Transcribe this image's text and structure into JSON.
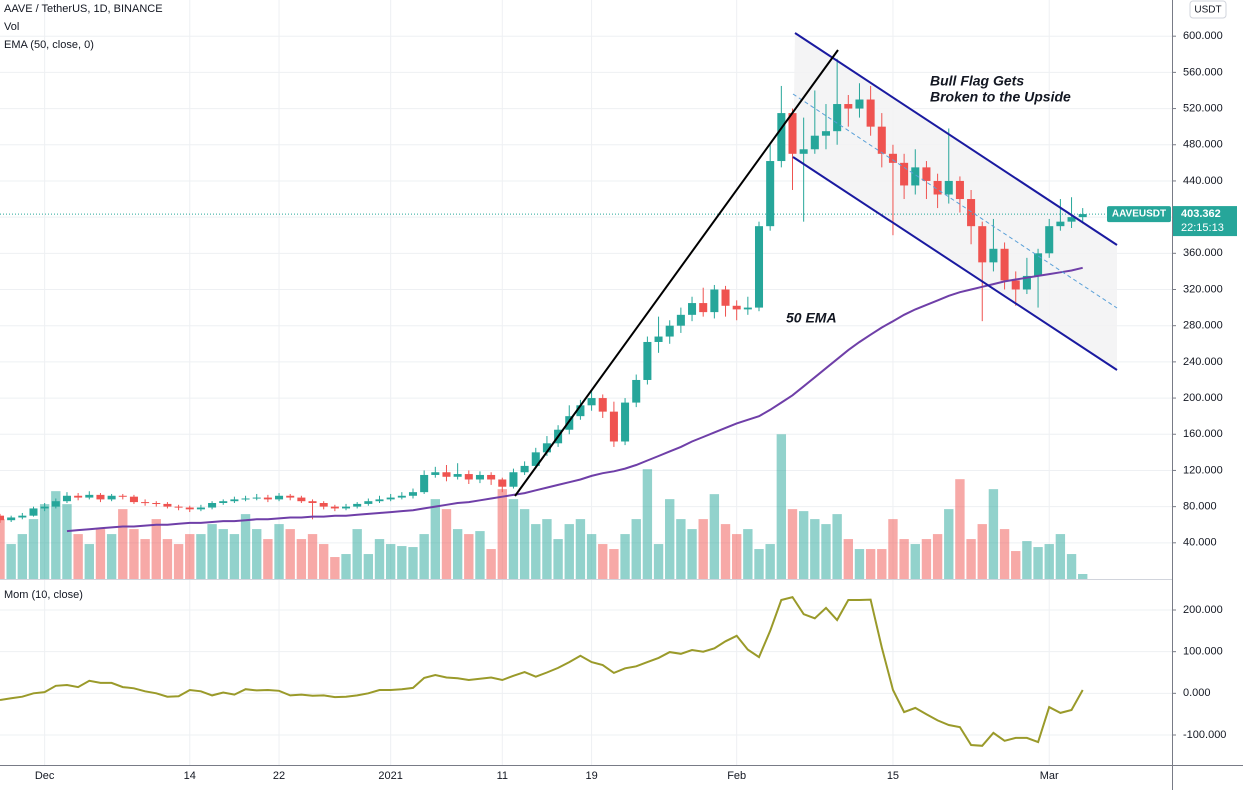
{
  "chart_data": {
    "type": "candlestick",
    "title": "AAVE / TetherUS, 1D, BINANCE",
    "volume_label": "Vol",
    "ema_label": "EMA (50, close, 0)",
    "momentum_label": "Mom (10, close)",
    "currency": "USDT",
    "symbol_label": "AAVEUSDT",
    "countdown": "22:15:13",
    "annotations": [
      "Bull Flag Gets",
      "Broken to the Upside",
      "50 EMA"
    ],
    "x": [
      "2020-11-27",
      "2020-11-28",
      "2020-11-29",
      "2020-11-30",
      "2020-12-01",
      "2020-12-02",
      "2020-12-03",
      "2020-12-04",
      "2020-12-05",
      "2020-12-06",
      "2020-12-07",
      "2020-12-08",
      "2020-12-09",
      "2020-12-10",
      "2020-12-11",
      "2020-12-12",
      "2020-12-13",
      "2020-12-14",
      "2020-12-15",
      "2020-12-16",
      "2020-12-17",
      "2020-12-18",
      "2020-12-19",
      "2020-12-20",
      "2020-12-21",
      "2020-12-22",
      "2020-12-23",
      "2020-12-24",
      "2020-12-25",
      "2020-12-26",
      "2020-12-27",
      "2020-12-28",
      "2020-12-29",
      "2020-12-30",
      "2020-12-31",
      "2021-01-01",
      "2021-01-02",
      "2021-01-03",
      "2021-01-04",
      "2021-01-05",
      "2021-01-06",
      "2021-01-07",
      "2021-01-08",
      "2021-01-09",
      "2021-01-10",
      "2021-01-11",
      "2021-01-12",
      "2021-01-13",
      "2021-01-14",
      "2021-01-15",
      "2021-01-16",
      "2021-01-17",
      "2021-01-18",
      "2021-01-19",
      "2021-01-20",
      "2021-01-21",
      "2021-01-22",
      "2021-01-23",
      "2021-01-24",
      "2021-01-25",
      "2021-01-26",
      "2021-01-27",
      "2021-01-28",
      "2021-01-29",
      "2021-01-30",
      "2021-01-31",
      "2021-02-01",
      "2021-02-02",
      "2021-02-03",
      "2021-02-04",
      "2021-02-05",
      "2021-02-06",
      "2021-02-07",
      "2021-02-08",
      "2021-02-09",
      "2021-02-10",
      "2021-02-11",
      "2021-02-12",
      "2021-02-13",
      "2021-02-14",
      "2021-02-15",
      "2021-02-16",
      "2021-02-17",
      "2021-02-18",
      "2021-02-19",
      "2021-02-20",
      "2021-02-21",
      "2021-02-22",
      "2021-02-23",
      "2021-02-24",
      "2021-02-25",
      "2021-02-26",
      "2021-02-27",
      "2021-02-28",
      "2021-03-01",
      "2021-03-02",
      "2021-03-03",
      "2021-03-04"
    ],
    "xlim": [
      "2020-11-27",
      "2021-03-12"
    ],
    "xticks": [
      {
        "value": "2020-12-01",
        "label": "Dec"
      },
      {
        "value": "2020-12-14",
        "label": "14"
      },
      {
        "value": "2020-12-22",
        "label": "22"
      },
      {
        "value": "2021-01-01",
        "label": "2021"
      },
      {
        "value": "2021-01-11",
        "label": "11"
      },
      {
        "value": "2021-01-19",
        "label": "19"
      },
      {
        "value": "2021-02-01",
        "label": "Feb"
      },
      {
        "value": "2021-02-15",
        "label": "15"
      },
      {
        "value": "2021-03-01",
        "label": "Mar"
      }
    ],
    "open": [
      70,
      65,
      68,
      70,
      78,
      80,
      86,
      92,
      90,
      93,
      88,
      92,
      91,
      85,
      84,
      83,
      80,
      79,
      77,
      79,
      84,
      86,
      88,
      89,
      90,
      88,
      92,
      90,
      86,
      84,
      80,
      78,
      80,
      83,
      86,
      88,
      90,
      92,
      96,
      115,
      118,
      113,
      116,
      110,
      115,
      110,
      102,
      118,
      125,
      140,
      150,
      165,
      180,
      192,
      200,
      185,
      152,
      195,
      220,
      262,
      268,
      280,
      292,
      305,
      295,
      320,
      302,
      298,
      300,
      390,
      462,
      515,
      470,
      475,
      490,
      495,
      525,
      520,
      530,
      500,
      470,
      460,
      435,
      455,
      440,
      425,
      440,
      420,
      390,
      350,
      365,
      330,
      320,
      335,
      360,
      390,
      395,
      400
    ],
    "high": [
      72,
      70,
      73,
      80,
      84,
      89,
      96,
      95,
      97,
      95,
      94,
      94,
      93,
      88,
      86,
      85,
      82,
      81,
      82,
      86,
      88,
      91,
      92,
      94,
      93,
      95,
      94,
      92,
      88,
      86,
      82,
      83,
      85,
      89,
      92,
      94,
      96,
      100,
      120,
      124,
      126,
      128,
      120,
      119,
      118,
      112,
      122,
      130,
      145,
      158,
      170,
      192,
      198,
      208,
      204,
      196,
      200,
      226,
      268,
      290,
      286,
      300,
      312,
      322,
      325,
      324,
      308,
      312,
      395,
      480,
      545,
      520,
      510,
      540,
      525,
      575,
      535,
      548,
      545,
      515,
      480,
      470,
      475,
      462,
      448,
      498,
      445,
      430,
      395,
      398,
      372,
      340,
      355,
      365,
      398,
      420,
      422,
      410
    ],
    "low": [
      62,
      63,
      66,
      69,
      75,
      78,
      84,
      87,
      88,
      85,
      86,
      88,
      83,
      81,
      80,
      78,
      76,
      74,
      75,
      77,
      82,
      84,
      86,
      87,
      85,
      86,
      87,
      84,
      66,
      77,
      75,
      76,
      78,
      81,
      84,
      86,
      88,
      89,
      94,
      112,
      108,
      110,
      105,
      106,
      104,
      96,
      100,
      115,
      122,
      136,
      146,
      160,
      176,
      186,
      178,
      146,
      148,
      190,
      215,
      250,
      260,
      272,
      285,
      290,
      288,
      290,
      286,
      292,
      296,
      385,
      455,
      430,
      395,
      470,
      475,
      480,
      500,
      510,
      490,
      455,
      380,
      420,
      425,
      420,
      410,
      415,
      405,
      370,
      285,
      340,
      320,
      302,
      315,
      300,
      355,
      385,
      388,
      393
    ],
    "close": [
      65,
      68,
      70,
      78,
      80,
      86,
      92,
      90,
      93,
      88,
      92,
      91,
      85,
      84,
      83,
      80,
      79,
      77,
      79,
      84,
      86,
      88,
      89,
      90,
      88,
      92,
      90,
      86,
      84,
      80,
      78,
      80,
      83,
      86,
      88,
      90,
      92,
      96,
      115,
      118,
      113,
      116,
      110,
      115,
      110,
      102,
      118,
      125,
      140,
      150,
      165,
      180,
      192,
      200,
      185,
      152,
      195,
      220,
      262,
      268,
      280,
      292,
      305,
      295,
      320,
      302,
      298,
      300,
      390,
      462,
      515,
      470,
      475,
      490,
      495,
      525,
      520,
      530,
      500,
      470,
      460,
      435,
      455,
      440,
      425,
      440,
      420,
      390,
      350,
      365,
      330,
      320,
      335,
      360,
      390,
      395,
      400,
      403.362
    ],
    "up_color": "#26a69a",
    "down_color": "#ef5350",
    "ylim": [
      0,
      640
    ],
    "yticks": [
      {
        "value": 40,
        "label": "40.000"
      },
      {
        "value": 80,
        "label": "80.000"
      },
      {
        "value": 120,
        "label": "120.000"
      },
      {
        "value": 160,
        "label": "160.000"
      },
      {
        "value": 200,
        "label": "200.000"
      },
      {
        "value": 240,
        "label": "240.000"
      },
      {
        "value": 280,
        "label": "280.000"
      },
      {
        "value": 320,
        "label": "320.000"
      },
      {
        "value": 360,
        "label": "360.000"
      },
      {
        "value": 400,
        "label": "400.000"
      },
      {
        "value": 440,
        "label": "440.000"
      },
      {
        "value": 480,
        "label": "480.000"
      },
      {
        "value": 520,
        "label": "520.000"
      },
      {
        "value": 560,
        "label": "560.000"
      },
      {
        "value": 600,
        "label": "600.000"
      }
    ],
    "grid": true,
    "volume": {
      "ylim": [
        0,
        580
      ],
      "values": [
        60,
        35,
        45,
        60,
        75,
        88,
        75,
        45,
        35,
        50,
        45,
        70,
        50,
        40,
        60,
        40,
        35,
        45,
        45,
        55,
        50,
        45,
        65,
        50,
        40,
        55,
        50,
        40,
        45,
        35,
        22,
        25,
        50,
        25,
        40,
        35,
        33,
        32,
        45,
        80,
        70,
        50,
        45,
        48,
        30,
        90,
        80,
        70,
        55,
        60,
        40,
        55,
        60,
        45,
        35,
        30,
        45,
        60,
        110,
        35,
        80,
        60,
        50,
        60,
        85,
        55,
        45,
        50,
        30,
        35,
        145,
        70,
        68,
        60,
        55,
        65,
        40,
        30,
        30,
        30,
        60,
        40,
        35,
        40,
        45,
        70,
        100,
        40,
        55,
        90,
        50,
        28,
        38,
        32,
        35,
        45,
        25,
        5
      ]
    },
    "ema": {
      "color": "#6f3fa8",
      "values": [
        null,
        null,
        null,
        null,
        null,
        null,
        53,
        54,
        55,
        56,
        57,
        58,
        58,
        59,
        60,
        60,
        61,
        62,
        62,
        63,
        64,
        64,
        65,
        66,
        66,
        67,
        68,
        68,
        69,
        69,
        70,
        70,
        71,
        72,
        73,
        74,
        75,
        76,
        78,
        80,
        82,
        84,
        85,
        87,
        89,
        91,
        93,
        95,
        98,
        101,
        104,
        107,
        110,
        114,
        117,
        119,
        122,
        126,
        131,
        136,
        141,
        146,
        152,
        157,
        162,
        167,
        172,
        176,
        180,
        187,
        195,
        203,
        213,
        223,
        233,
        243,
        253,
        262,
        270,
        278,
        285,
        292,
        298,
        303,
        308,
        313,
        317,
        320,
        323,
        326,
        329,
        331,
        333,
        335,
        337,
        339,
        341,
        344
      ]
    },
    "momentum": {
      "color": "#9a9a2a",
      "ylim": [
        -172,
        272
      ],
      "yticks": [
        {
          "value": 200,
          "label": "200.000"
        },
        {
          "value": 100,
          "label": "100.000"
        },
        {
          "value": 0,
          "label": "0.000"
        },
        {
          "value": -100,
          "label": "-100.000"
        }
      ],
      "values": [
        -16,
        -12,
        -8,
        0,
        3,
        18,
        20,
        15,
        30,
        25,
        25,
        15,
        12,
        5,
        0,
        -8,
        -7,
        8,
        5,
        -5,
        2,
        -3,
        10,
        7,
        8,
        6,
        -5,
        -3,
        -6,
        -5,
        -9,
        -8,
        -5,
        0,
        8,
        8,
        10,
        13,
        37,
        44,
        38,
        36,
        32,
        35,
        38,
        32,
        42,
        51,
        40,
        50,
        61,
        75,
        90,
        75,
        68,
        49,
        60,
        65,
        75,
        85,
        99,
        95,
        104,
        100,
        108,
        125,
        138,
        105,
        87,
        150,
        224,
        231,
        190,
        180,
        205,
        176,
        224,
        224,
        225,
        110,
        8,
        -45,
        -35,
        -50,
        -65,
        -76,
        -81,
        -124,
        -126,
        -95,
        -114,
        -107,
        -107,
        -117,
        -33,
        -47,
        -40,
        8
      ]
    }
  }
}
